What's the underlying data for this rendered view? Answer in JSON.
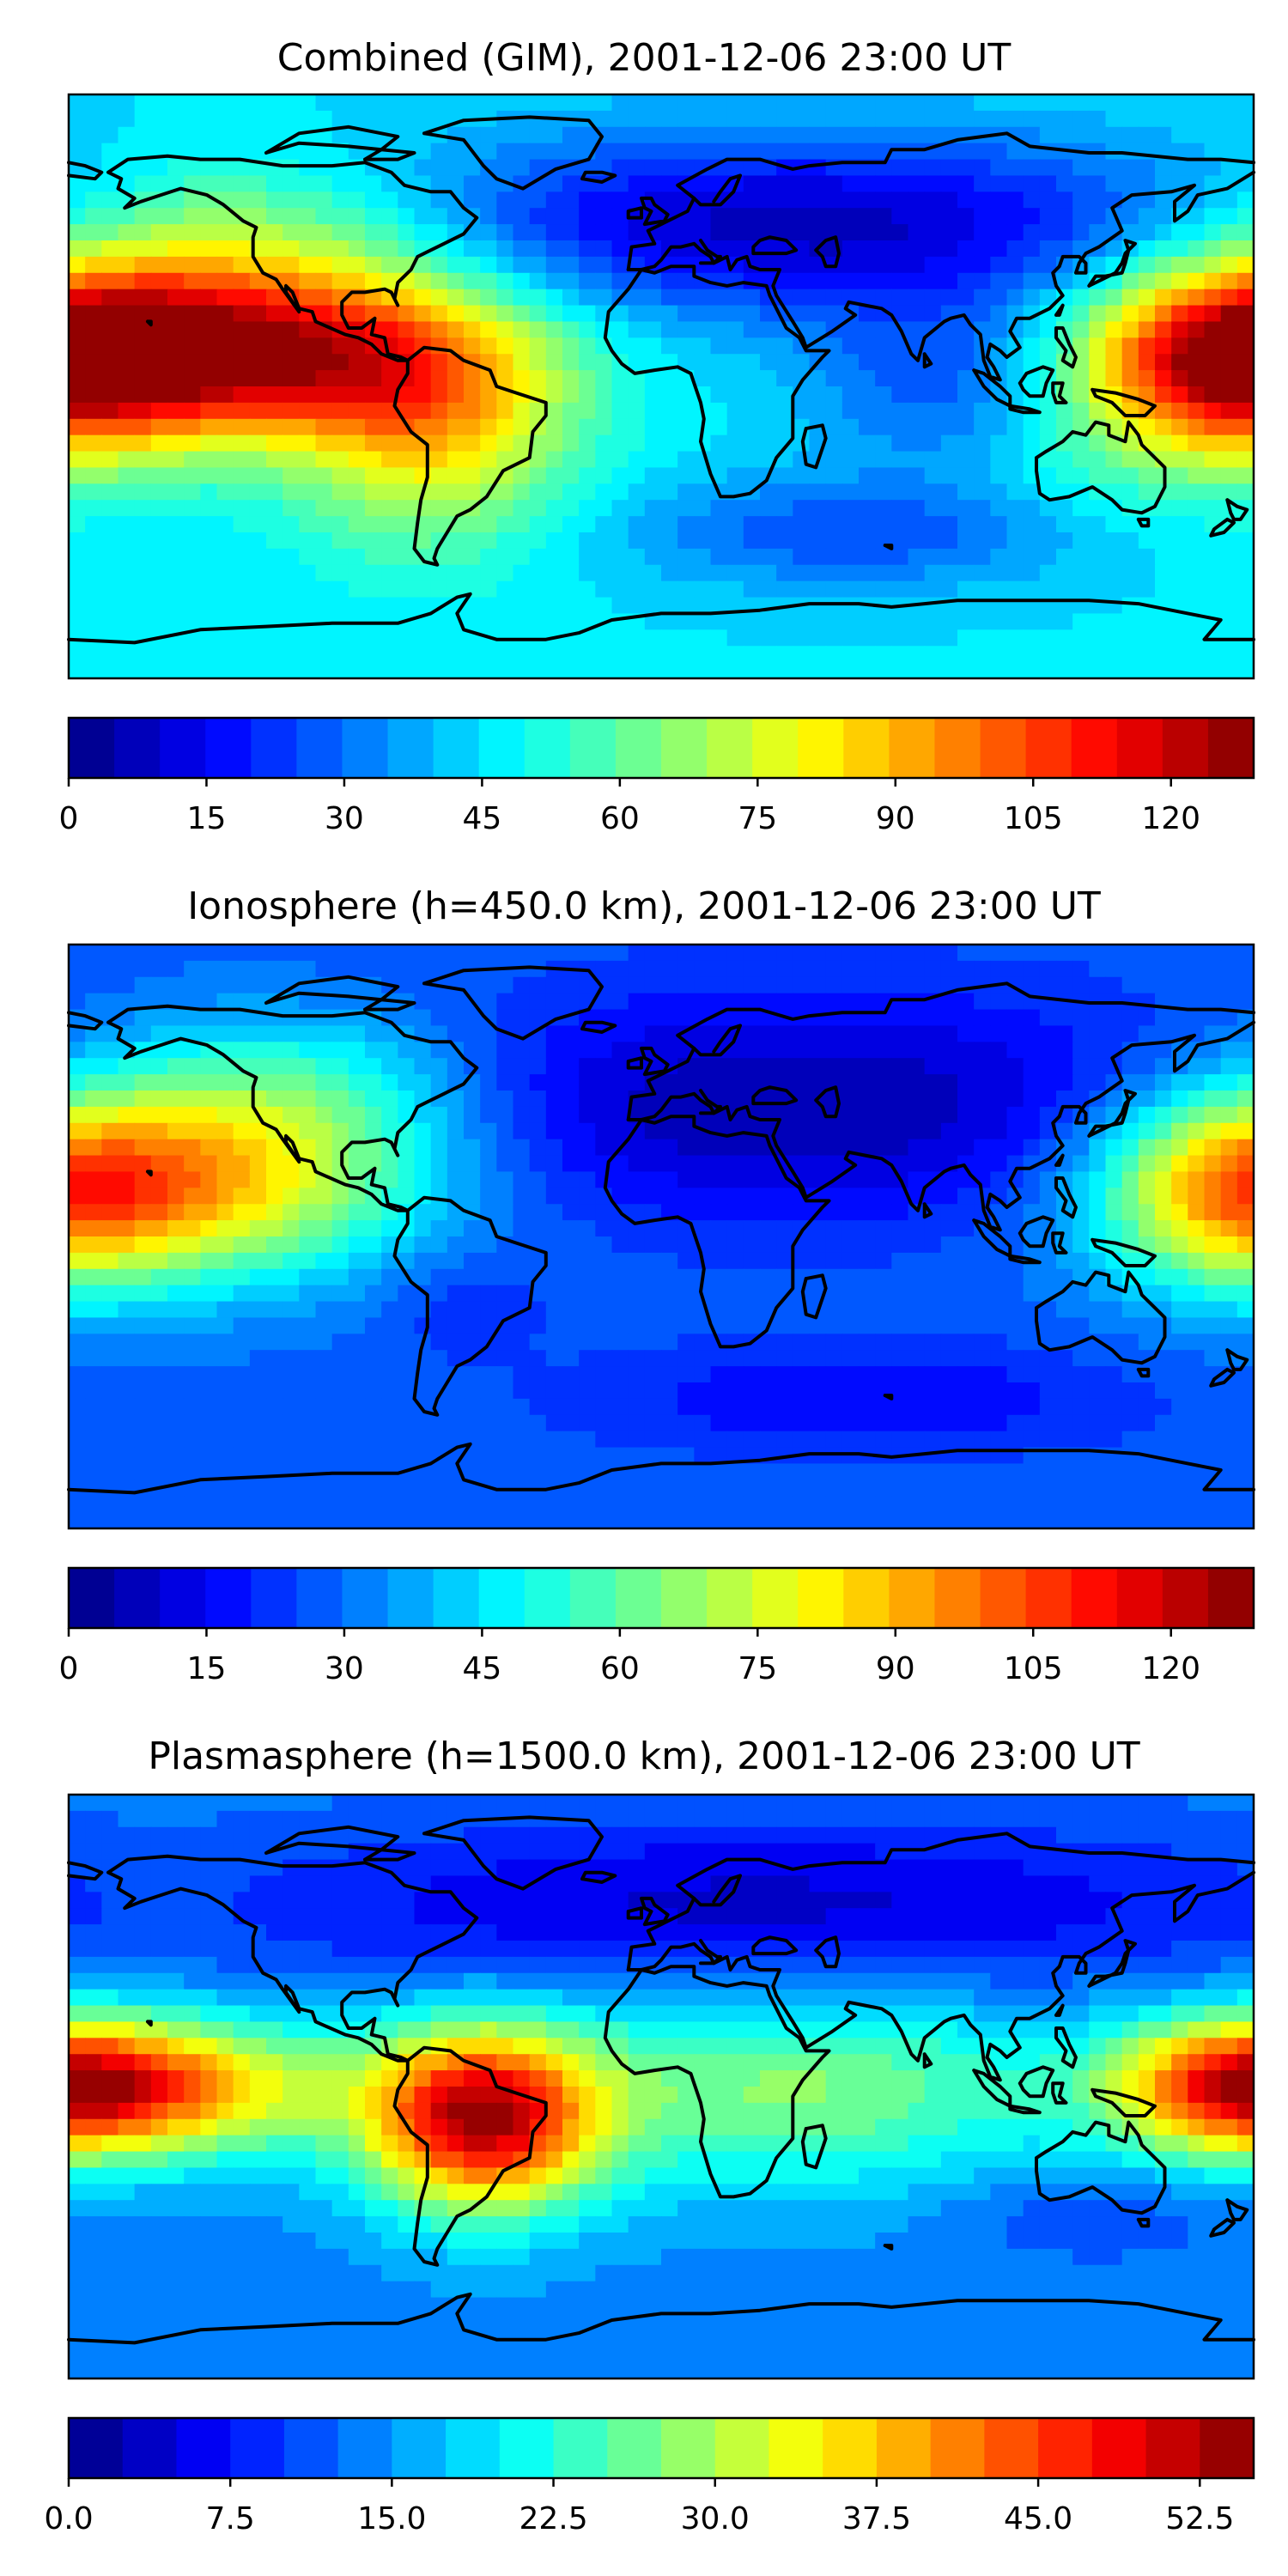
{
  "chart_data": [
    {
      "type": "heatmap",
      "title": "Combined (GIM), 2001-12-06 23:00 UT",
      "colorbar": {
        "min": 0,
        "max": 129,
        "levels": 26,
        "ticks": [
          0,
          15,
          30,
          45,
          60,
          75,
          90,
          105,
          120
        ],
        "tick_labels": [
          "0",
          "15",
          "30",
          "45",
          "60",
          "75",
          "90",
          "105",
          "120"
        ]
      },
      "features": [
        {
          "lon": -140,
          "lat": 10,
          "value": 125,
          "spread_lon": 55,
          "spread_lat": 18
        },
        {
          "lon": -70,
          "lat": -10,
          "value": 82,
          "spread_lon": 30,
          "spread_lat": 28
        },
        {
          "lon": -120,
          "lat": 45,
          "value": 68,
          "spread_lon": 40,
          "spread_lat": 18
        },
        {
          "lon": 175,
          "lat": 10,
          "value": 90,
          "spread_lon": 30,
          "spread_lat": 22
        },
        {
          "lon": 130,
          "lat": -20,
          "value": 55,
          "spread_lon": 40,
          "spread_lat": 20
        },
        {
          "lon": 40,
          "lat": 50,
          "value": 8,
          "spread_lon": 90,
          "spread_lat": 20
        },
        {
          "lon": 90,
          "lat": 0,
          "value": 22,
          "spread_lon": 30,
          "spread_lat": 20
        },
        {
          "lon": 60,
          "lat": -45,
          "value": 25,
          "spread_lon": 50,
          "spread_lat": 12
        }
      ],
      "background_value": 45
    },
    {
      "type": "heatmap",
      "title": "Ionosphere  (h=450.0 km), 2001-12-06 23:00 UT",
      "colorbar": {
        "min": 0,
        "max": 129,
        "levels": 26,
        "ticks": [
          0,
          15,
          30,
          45,
          60,
          75,
          90,
          105,
          120
        ],
        "tick_labels": [
          "0",
          "15",
          "30",
          "45",
          "60",
          "75",
          "90",
          "105",
          "120"
        ]
      },
      "features": [
        {
          "lon": -140,
          "lat": 15,
          "value": 80,
          "spread_lon": 50,
          "spread_lat": 20
        },
        {
          "lon": -110,
          "lat": 45,
          "value": 55,
          "spread_lon": 40,
          "spread_lat": 18
        },
        {
          "lon": 175,
          "lat": 15,
          "value": 75,
          "spread_lon": 30,
          "spread_lat": 22
        },
        {
          "lon": -60,
          "lat": -20,
          "value": 20,
          "spread_lon": 18,
          "spread_lat": 12
        },
        {
          "lon": 40,
          "lat": 40,
          "value": 5,
          "spread_lon": 90,
          "spread_lat": 25
        },
        {
          "lon": 60,
          "lat": -50,
          "value": 15,
          "spread_lon": 60,
          "spread_lat": 12
        }
      ],
      "background_value": 28
    },
    {
      "type": "heatmap",
      "title": "Plasmasphere (h=1500.0 km), 2001-12-06 23:00 UT",
      "colorbar": {
        "min": 0,
        "max": 55,
        "levels": 22,
        "ticks": [
          0.0,
          7.5,
          15.0,
          22.5,
          30.0,
          37.5,
          45.0,
          52.5
        ],
        "tick_labels": [
          "0.0",
          "7.5",
          "15.0",
          "22.5",
          "30.0",
          "37.5",
          "45.0",
          "52.5"
        ]
      },
      "features": [
        {
          "lon": -55,
          "lat": -10,
          "value": 50,
          "spread_lon": 25,
          "spread_lat": 20
        },
        {
          "lon": -155,
          "lat": 0,
          "value": 40,
          "spread_lon": 40,
          "spread_lat": 15
        },
        {
          "lon": 175,
          "lat": 0,
          "value": 34,
          "spread_lon": 25,
          "spread_lat": 15
        },
        {
          "lon": 40,
          "lat": 0,
          "value": 28,
          "spread_lon": 60,
          "spread_lat": 22
        },
        {
          "lon": 30,
          "lat": 55,
          "value": 4,
          "spread_lon": 120,
          "spread_lat": 20
        },
        {
          "lon": 130,
          "lat": -40,
          "value": 10,
          "spread_lon": 30,
          "spread_lat": 10
        }
      ],
      "background_value": 14
    }
  ],
  "map": {
    "projection": "PlateCarree",
    "lon_range": [
      -180,
      180
    ],
    "lat_range": [
      -90,
      90
    ],
    "coastlines": true
  }
}
